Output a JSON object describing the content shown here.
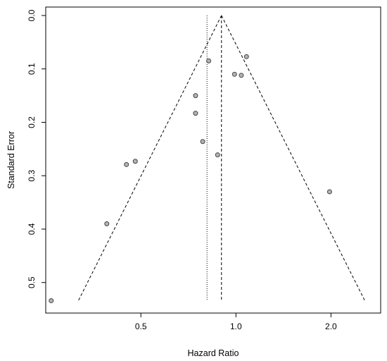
{
  "chart_data": {
    "type": "scatter",
    "subtype": "funnel-plot",
    "title": "",
    "xlabel": "Hazard Ratio",
    "ylabel": "Standard Error",
    "x_scale": "log",
    "y_reversed": true,
    "x_ticks": [
      {
        "value": 0.5,
        "label": "0.5"
      },
      {
        "value": 1.0,
        "label": "1.0"
      },
      {
        "value": 2.0,
        "label": "2.0"
      }
    ],
    "y_ticks": [
      {
        "value": 0.0,
        "label": "0.0"
      },
      {
        "value": 0.1,
        "label": "0.1"
      },
      {
        "value": 0.2,
        "label": "0.2"
      },
      {
        "value": 0.3,
        "label": "0.3"
      },
      {
        "value": 0.4,
        "label": "0.4"
      },
      {
        "value": 0.5,
        "label": "0.5"
      }
    ],
    "xlim": [
      0.263,
      2.73
    ],
    "ylim": [
      0.0,
      0.54
    ],
    "grid": false,
    "legend": "none",
    "funnel_apex_hr": 0.9,
    "funnel_base_se": 0.534,
    "funnel_limits_at_base": [
      0.317,
      2.56
    ],
    "reference_line_hr": 0.81,
    "points": [
      {
        "hr": 0.26,
        "se": 0.534
      },
      {
        "hr": 0.39,
        "se": 0.39
      },
      {
        "hr": 0.45,
        "se": 0.279
      },
      {
        "hr": 0.48,
        "se": 0.273
      },
      {
        "hr": 0.745,
        "se": 0.15
      },
      {
        "hr": 0.745,
        "se": 0.183
      },
      {
        "hr": 0.785,
        "se": 0.236
      },
      {
        "hr": 0.82,
        "se": 0.085
      },
      {
        "hr": 0.875,
        "se": 0.261
      },
      {
        "hr": 0.99,
        "se": 0.11
      },
      {
        "hr": 1.04,
        "se": 0.112
      },
      {
        "hr": 1.08,
        "se": 0.077
      },
      {
        "hr": 1.98,
        "se": 0.33
      }
    ],
    "colors": {
      "point_fill": "#b3b3b3",
      "point_stroke": "#444444",
      "line": "#000000"
    }
  }
}
